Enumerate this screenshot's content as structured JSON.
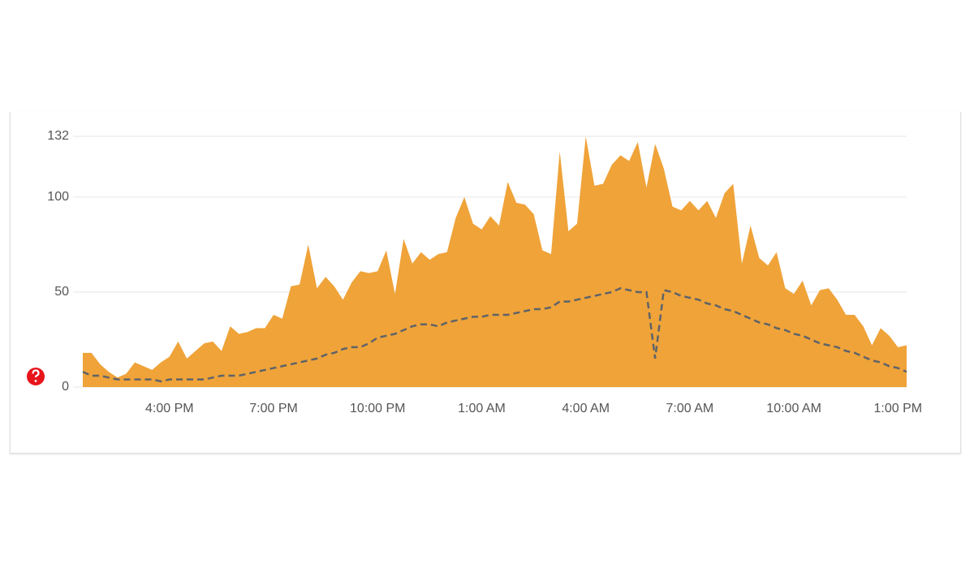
{
  "chart_data": {
    "type": "area",
    "categories": [
      null,
      null,
      null,
      null,
      null,
      null,
      null,
      null,
      null,
      null,
      "4:00 PM",
      null,
      null,
      null,
      null,
      null,
      null,
      null,
      null,
      null,
      null,
      null,
      "7:00 PM",
      null,
      null,
      null,
      null,
      null,
      null,
      null,
      null,
      null,
      null,
      null,
      "10:00 PM",
      null,
      null,
      null,
      null,
      null,
      null,
      null,
      null,
      null,
      null,
      null,
      "1:00 AM",
      null,
      null,
      null,
      null,
      null,
      null,
      null,
      null,
      null,
      null,
      null,
      "4:00 AM",
      null,
      null,
      null,
      null,
      null,
      null,
      null,
      null,
      null,
      null,
      null,
      "7:00 AM",
      null,
      null,
      null,
      null,
      null,
      null,
      null,
      null,
      null,
      null,
      null,
      "10:00 AM",
      null,
      null,
      null,
      null,
      null,
      null,
      null,
      null,
      null,
      null,
      null,
      "1:00 PM",
      null
    ],
    "series": [
      {
        "color": "#efa339",
        "style": "area",
        "values": [
          18,
          18,
          12,
          8,
          5,
          7,
          13,
          11,
          9,
          13,
          16,
          24,
          15,
          19,
          23,
          24,
          19,
          32,
          28,
          29,
          31,
          31,
          38,
          36,
          53,
          54,
          75,
          52,
          58,
          53,
          46,
          55,
          61,
          60,
          61,
          72,
          49,
          78,
          65,
          71,
          67,
          70,
          71,
          89,
          100,
          86,
          83,
          90,
          85,
          108,
          97,
          96,
          91,
          72,
          70,
          124,
          82,
          86,
          132,
          106,
          107,
          117,
          122,
          119,
          129,
          105,
          128,
          115,
          95,
          93,
          98,
          93,
          98,
          89,
          102,
          107,
          65,
          85,
          68,
          64,
          71,
          52,
          49,
          56,
          43,
          51,
          52,
          46,
          38,
          38,
          32,
          22,
          31,
          27,
          21,
          22
        ]
      },
      {
        "color": "#5f6368",
        "style": "dashed",
        "values": [
          8,
          6,
          6,
          5,
          4,
          4,
          4,
          4,
          4,
          3,
          4,
          4,
          4,
          4,
          4,
          5,
          6,
          6,
          6,
          7,
          8,
          9,
          10,
          11,
          12,
          13,
          14,
          15,
          17,
          18,
          20,
          21,
          21,
          23,
          26,
          27,
          28,
          30,
          32,
          33,
          33,
          32,
          34,
          35,
          36,
          37,
          37,
          38,
          38,
          38,
          39,
          40,
          41,
          41,
          42,
          45,
          45,
          46,
          47,
          48,
          49,
          50,
          52,
          51,
          50,
          50,
          15,
          51,
          50,
          48,
          47,
          46,
          44,
          43,
          41,
          40,
          38,
          36,
          34,
          33,
          31,
          30,
          28,
          27,
          25,
          23,
          22,
          21,
          19,
          18,
          16,
          14,
          13,
          11,
          10,
          8
        ]
      }
    ],
    "ylim": [
      0,
      132
    ],
    "yticks": [
      0,
      50,
      100,
      132
    ],
    "grid": true
  }
}
